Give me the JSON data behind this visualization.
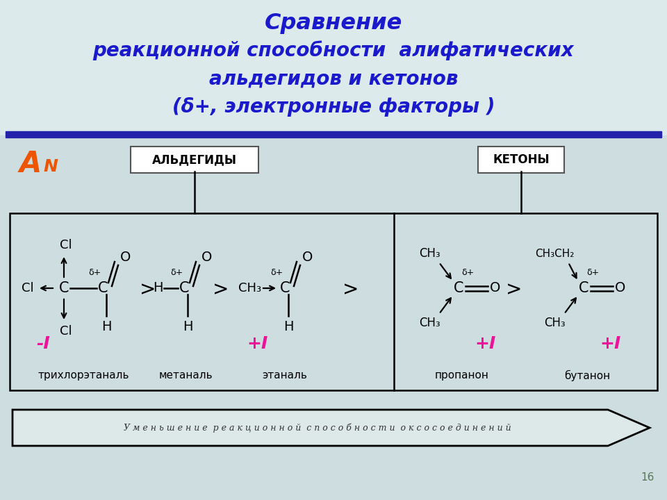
{
  "title_line1": "Сравнение",
  "title_line2": "реакционной способности  алифатических",
  "title_line3": "альдегидов и кетонов",
  "title_line4": "(δ+, электронные факторы )",
  "bg_top_color": "#e8f0f0",
  "bg_bottom_color": "#c8dce0",
  "title_color": "#1a1acc",
  "aldehyde_label": "АЛЬДЕГИДЫ",
  "ketone_label": "КЕТОНЫ",
  "an_label": "A",
  "an_sub": "N",
  "arrow_label": "У м е н ь ш е н и е  р е а к ц и о н н о й  с п о с о б н о с т и  о к с о с о е д и н е н и й",
  "minus_i_color": "#ee1199",
  "plus_i_color": "#ee1199",
  "page_num": "16",
  "separator_color": "#2222aa",
  "box_facecolor": "#ffffff"
}
